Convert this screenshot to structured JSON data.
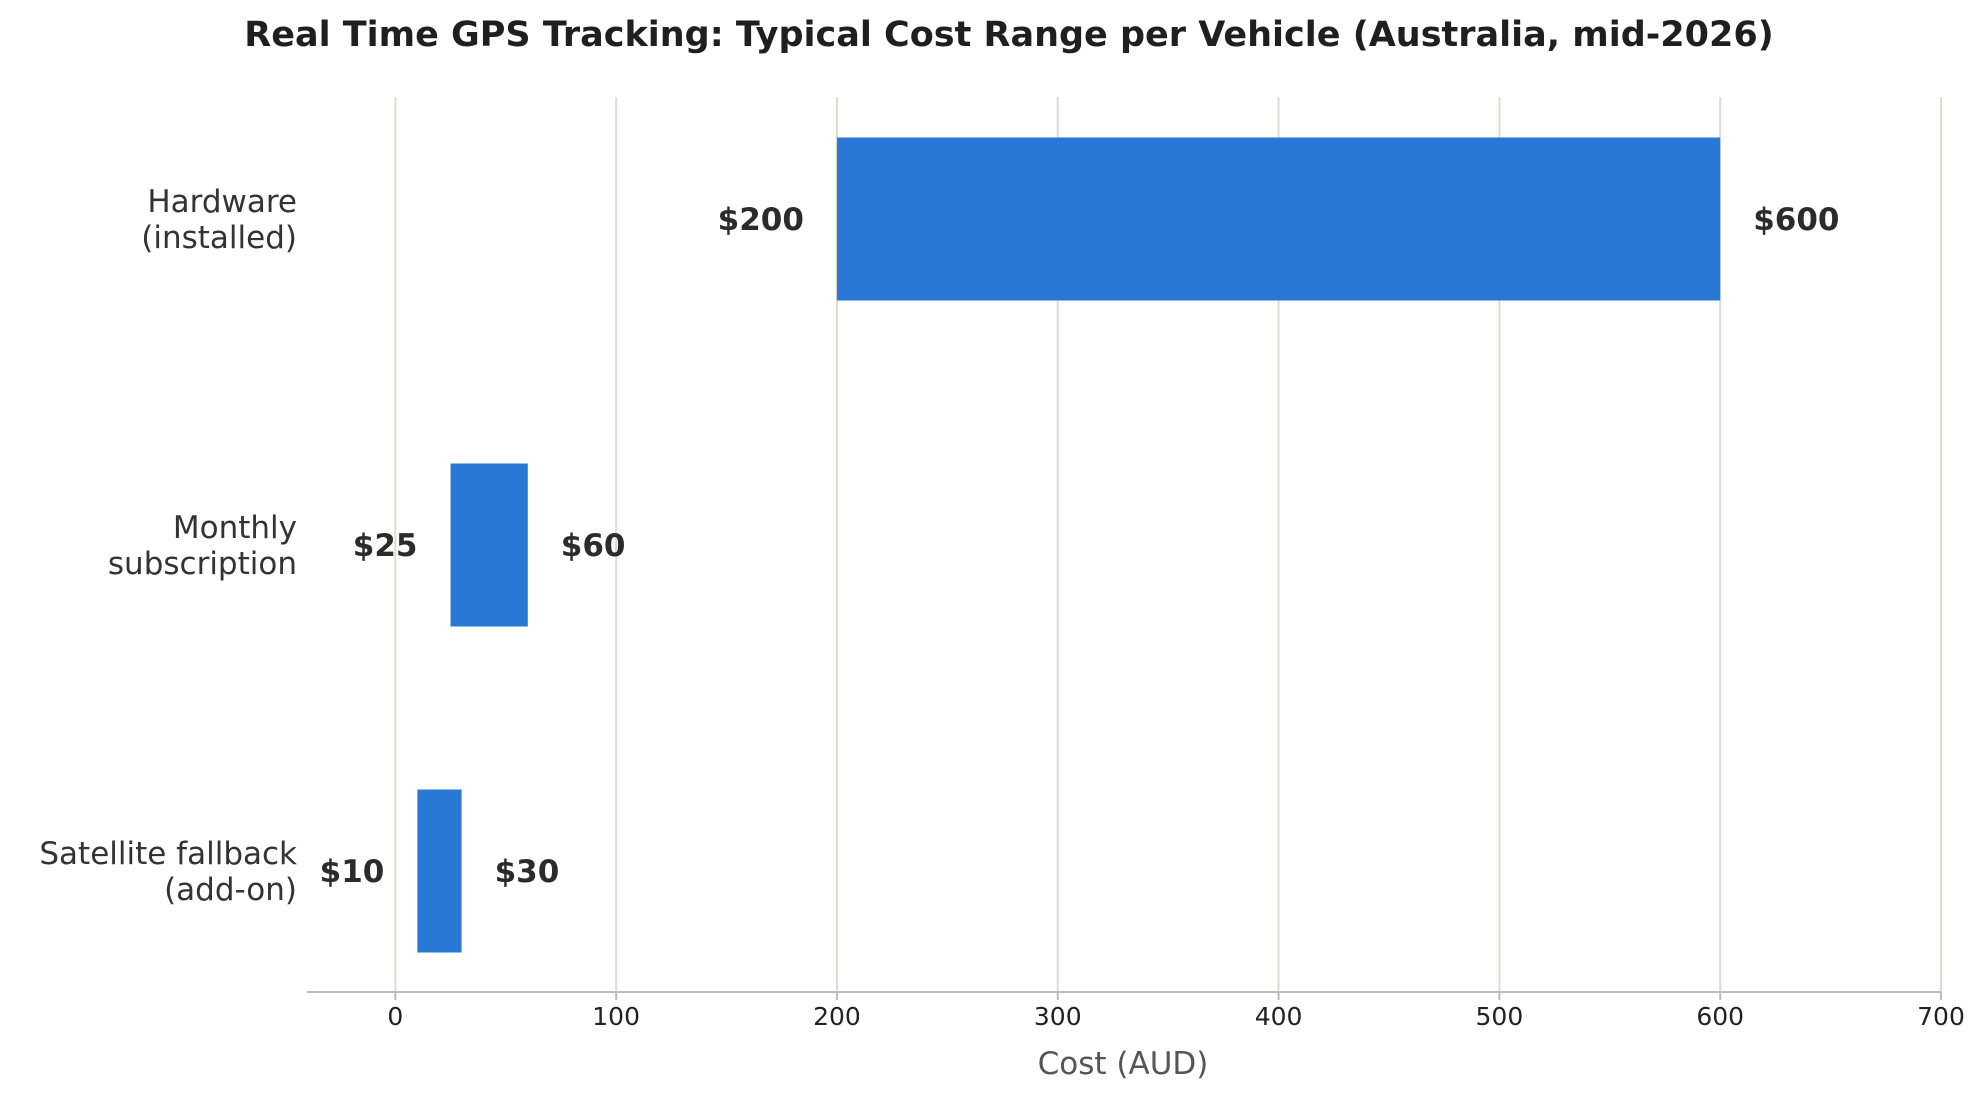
{
  "chart_data": {
    "type": "bar",
    "orientation": "horizontal-range",
    "title": "Real Time GPS Tracking: Typical Cost Range per Vehicle (Australia, mid-2026)",
    "xlabel": "Cost (AUD)",
    "ylabel": "",
    "xlim": [
      -40,
      700
    ],
    "xticks": [
      0,
      100,
      200,
      300,
      400,
      500,
      600,
      700
    ],
    "grid": "vertical",
    "bar_color": "#2a78d6",
    "categories": [
      [
        "Hardware",
        "(installed)"
      ],
      [
        "Monthly",
        "subscription"
      ],
      [
        "Satellite fallback",
        "(add-on)"
      ]
    ],
    "ranges": [
      {
        "low": 200,
        "high": 600,
        "low_label": "$200",
        "high_label": "$600"
      },
      {
        "low": 25,
        "high": 60,
        "low_label": "$25",
        "high_label": "$60"
      },
      {
        "low": 10,
        "high": 30,
        "low_label": "$10",
        "high_label": "$30"
      }
    ]
  }
}
